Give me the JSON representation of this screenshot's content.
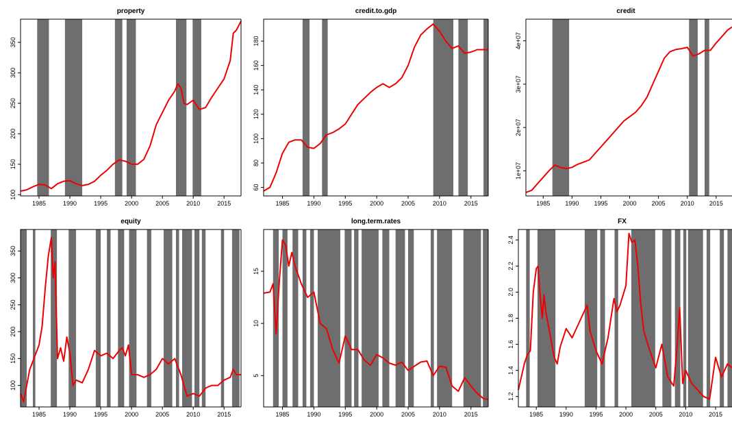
{
  "chart_data": [
    {
      "type": "line",
      "title": "property",
      "xlim": [
        1982,
        2017.75
      ],
      "ylim": [
        98,
        388
      ],
      "xticks": [
        1985,
        1990,
        1995,
        2000,
        2005,
        2010,
        2015
      ],
      "yticks": [
        100,
        150,
        200,
        250,
        300,
        350
      ],
      "line_color": "#ee0000",
      "shade_color": "#6e6e6e",
      "shaded_periods": [
        [
          1984.7,
          1986.6
        ],
        [
          1989.2,
          1992.0
        ],
        [
          1997.3,
          1998.5
        ],
        [
          1999.2,
          2000.7
        ],
        [
          2007.2,
          2008.9
        ],
        [
          2009.9,
          2011.3
        ]
      ],
      "series": [
        {
          "x": [
            1982,
            1983,
            1984,
            1985,
            1986,
            1987,
            1988,
            1989,
            1990,
            1991,
            1992,
            1993,
            1994,
            1995,
            1996,
            1997,
            1998,
            1999,
            2000,
            2001,
            2002,
            2003,
            2004,
            2005,
            2006,
            2007,
            2007.5,
            2008,
            2008.5,
            2009,
            2010,
            2011,
            2012,
            2013,
            2014,
            2015,
            2016,
            2016.5,
            2017,
            2017.75
          ],
          "y": [
            106,
            108,
            113,
            117,
            116,
            110,
            118,
            122,
            123,
            118,
            115,
            117,
            122,
            132,
            140,
            150,
            157,
            155,
            150,
            150,
            158,
            180,
            215,
            235,
            255,
            270,
            282,
            275,
            250,
            248,
            255,
            240,
            243,
            260,
            275,
            290,
            320,
            365,
            370,
            385
          ]
        }
      ]
    },
    {
      "type": "line",
      "title": "credit.to.gdp",
      "xlim": [
        1982,
        2017.75
      ],
      "ylim": [
        53,
        198
      ],
      "xticks": [
        1985,
        1990,
        1995,
        2000,
        2005,
        2010,
        2015
      ],
      "yticks": [
        60,
        80,
        100,
        120,
        140,
        160,
        180
      ],
      "line_color": "#ee0000",
      "shade_color": "#6e6e6e",
      "shaded_periods": [
        [
          1988.2,
          1989.3
        ],
        [
          1991.3,
          1992.2
        ],
        [
          2009.0,
          2012.2
        ],
        [
          2013.0,
          2014.5
        ],
        [
          2017.0,
          2017.75
        ]
      ],
      "series": [
        {
          "x": [
            1982,
            1983,
            1984,
            1985,
            1986,
            1987,
            1988,
            1989,
            1990,
            1991,
            1992,
            1993,
            1994,
            1995,
            1996,
            1997,
            1998,
            1999,
            2000,
            2001,
            2002,
            2003,
            2004,
            2005,
            2006,
            2007,
            2008,
            2009,
            2010,
            2011,
            2012,
            2013,
            2014,
            2015,
            2016,
            2017,
            2017.75
          ],
          "y": [
            57,
            60,
            72,
            88,
            97,
            99,
            99,
            93,
            92,
            96,
            103,
            105,
            108,
            112,
            120,
            128,
            133,
            138,
            142,
            145,
            142,
            145,
            150,
            160,
            175,
            185,
            190,
            194,
            188,
            180,
            174,
            176,
            170,
            171,
            173,
            173,
            173
          ]
        }
      ]
    },
    {
      "type": "line",
      "title": "credit",
      "xlim": [
        1982,
        2017.75
      ],
      "ylim": [
        4200000,
        45000000
      ],
      "xticks": [
        1985,
        1990,
        1995,
        2000,
        2005,
        2010,
        2015
      ],
      "yticks": [
        10000000,
        20000000,
        30000000,
        40000000
      ],
      "ytick_labels": [
        "1e+07",
        "2e+07",
        "3e+07",
        "4e+07"
      ],
      "line_color": "#ee0000",
      "shade_color": "#6e6e6e",
      "shaded_periods": [
        [
          1986.6,
          1989.5
        ],
        [
          2010.3,
          2011.8
        ],
        [
          2013.0,
          2013.8
        ]
      ],
      "series": [
        {
          "x": [
            1982,
            1983,
            1984,
            1985,
            1986,
            1987,
            1988,
            1989,
            1990,
            1991,
            1992,
            1993,
            1994,
            1995,
            1996,
            1997,
            1998,
            1999,
            2000,
            2001,
            2002,
            2003,
            2004,
            2005,
            2006,
            2007,
            2008,
            2009,
            2010,
            2011,
            2012,
            2013,
            2014,
            2015,
            2016,
            2017,
            2017.75
          ],
          "y": [
            5000000,
            5500000,
            7000000,
            8500000,
            10000000,
            11300000,
            10800000,
            10500000,
            10800000,
            11500000,
            12000000,
            12500000,
            14000000,
            15500000,
            17000000,
            18500000,
            20000000,
            21500000,
            22500000,
            23500000,
            25000000,
            27000000,
            30000000,
            33000000,
            36000000,
            37500000,
            38000000,
            38200000,
            38500000,
            36500000,
            37000000,
            37800000,
            37800000,
            39500000,
            41000000,
            42500000,
            43200000
          ]
        }
      ]
    },
    {
      "type": "line",
      "title": "equity",
      "xlim": [
        1982,
        2017.75
      ],
      "ylim": [
        60,
        390
      ],
      "xticks": [
        1985,
        1990,
        1995,
        2000,
        2005,
        2010,
        2015
      ],
      "yticks": [
        100,
        150,
        200,
        250,
        300,
        350
      ],
      "line_color": "#ee0000",
      "shade_color": "#6e6e6e",
      "shaded_periods": [
        [
          1982.0,
          1983.0
        ],
        [
          1984.0,
          1984.4
        ],
        [
          1986.9,
          1987.9
        ],
        [
          1989.8,
          1991.0
        ],
        [
          1994.2,
          1995.0
        ],
        [
          1996.0,
          1996.6
        ],
        [
          1997.8,
          1998.8
        ],
        [
          1999.6,
          2000.8
        ],
        [
          2002.5,
          2003.2
        ],
        [
          2005.2,
          2006.6
        ],
        [
          2007.2,
          2007.7
        ],
        [
          2008.2,
          2009.8
        ],
        [
          2010.2,
          2011.0
        ],
        [
          2011.4,
          2012.0
        ],
        [
          2014.5,
          2015.0
        ],
        [
          2016.3,
          2017.5
        ]
      ],
      "series": [
        {
          "x": [
            1982,
            1982.5,
            1983,
            1983.5,
            1984,
            1984.5,
            1985,
            1985.5,
            1986,
            1986.5,
            1987,
            1987.3,
            1987.6,
            1988,
            1988.5,
            1989,
            1989.5,
            1990,
            1990.5,
            1991,
            1992,
            1993,
            1994,
            1995,
            1996,
            1997,
            1998,
            1998.5,
            1999,
            1999.5,
            2000,
            2001,
            2002,
            2003,
            2004,
            2005,
            2006,
            2007,
            2008,
            2009,
            2010,
            2011,
            2012,
            2013,
            2014,
            2015,
            2016,
            2016.5,
            2017,
            2017.75
          ],
          "y": [
            85,
            70,
            100,
            130,
            145,
            160,
            175,
            210,
            280,
            340,
            375,
            300,
            330,
            150,
            170,
            145,
            190,
            160,
            100,
            110,
            105,
            130,
            165,
            155,
            160,
            150,
            165,
            170,
            155,
            175,
            120,
            120,
            115,
            120,
            130,
            150,
            140,
            150,
            120,
            80,
            85,
            80,
            95,
            100,
            100,
            110,
            115,
            130,
            120,
            120
          ]
        }
      ]
    },
    {
      "type": "line",
      "title": "long.term.rates",
      "xlim": [
        1982,
        2017.75
      ],
      "ylim": [
        2,
        19
      ],
      "xticks": [
        1985,
        1990,
        1995,
        2000,
        2005,
        2010,
        2015
      ],
      "yticks": [
        5,
        10,
        15
      ],
      "line_color": "#ee0000",
      "shade_color": "#6e6e6e",
      "shaded_periods": [
        [
          1983.5,
          1984.4
        ],
        [
          1985.0,
          1985.8
        ],
        [
          1986.6,
          1987.5
        ],
        [
          1988.2,
          1988.8
        ],
        [
          1989.4,
          1990.0
        ],
        [
          1990.6,
          1994.2
        ],
        [
          1994.9,
          1996.0
        ],
        [
          1996.4,
          1997.1
        ],
        [
          1997.6,
          2000.3
        ],
        [
          2000.9,
          2002.0
        ],
        [
          2003.0,
          2004.5
        ],
        [
          2005.0,
          2005.9
        ],
        [
          2008.6,
          2009.1
        ],
        [
          2009.6,
          2012.0
        ],
        [
          2013.8,
          2016.6
        ],
        [
          2016.9,
          2017.7
        ]
      ],
      "series": [
        {
          "x": [
            1982,
            1983,
            1983.5,
            1984,
            1984.5,
            1985,
            1985.5,
            1986,
            1986.5,
            1987,
            1988,
            1989,
            1990,
            1991,
            1992,
            1993,
            1994,
            1995,
            1996,
            1997,
            1998,
            1999,
            2000,
            2001,
            2002,
            2003,
            2004,
            2005,
            2006,
            2007,
            2008,
            2009,
            2010,
            2011,
            2012,
            2013,
            2014,
            2015,
            2016,
            2017,
            2017.75
          ],
          "y": [
            12.9,
            13.0,
            13.8,
            9.0,
            14.0,
            18.0,
            17.5,
            15.5,
            16.8,
            15.5,
            13.8,
            12.5,
            13.0,
            10.0,
            9.5,
            7.5,
            6.2,
            8.8,
            7.5,
            7.5,
            6.5,
            6.0,
            7.0,
            6.7,
            6.2,
            6.0,
            6.3,
            5.5,
            5.9,
            6.3,
            6.4,
            5.0,
            5.9,
            5.8,
            4.0,
            3.5,
            4.8,
            4.0,
            3.3,
            2.8,
            2.7
          ]
        }
      ]
    },
    {
      "type": "line",
      "title": "FX",
      "xlim": [
        1982,
        2017.75
      ],
      "ylim": [
        1.12,
        2.48
      ],
      "xticks": [
        1985,
        1990,
        1995,
        2000,
        2005,
        2010,
        2015
      ],
      "yticks": [
        1.2,
        1.4,
        1.6,
        1.8,
        2.0,
        2.2,
        2.4
      ],
      "ytick_labels": [
        "1.2",
        "1.4",
        "1.6",
        "1.8",
        "2.0",
        "2.2",
        "2.4"
      ],
      "line_color": "#ee0000",
      "shade_color": "#6e6e6e",
      "shaded_periods": [
        [
          1983.3,
          1983.9
        ],
        [
          1985.2,
          1988.2
        ],
        [
          1993.1,
          1995.2
        ],
        [
          1995.7,
          1996.5
        ],
        [
          1998.1,
          1998.7
        ],
        [
          2000.9,
          2004.9
        ],
        [
          2006.1,
          2007.6
        ],
        [
          2008.2,
          2009.1
        ],
        [
          2009.6,
          2010.1
        ],
        [
          2010.4,
          2012.9
        ],
        [
          2013.5,
          2014.1
        ],
        [
          2015.7,
          2016.4
        ],
        [
          2017.0,
          2017.75
        ]
      ],
      "series": [
        {
          "x": [
            1982,
            1983,
            1983.5,
            1984,
            1984.5,
            1985,
            1985.3,
            1985.6,
            1986,
            1986.3,
            1986.6,
            1987,
            1988,
            1988.5,
            1989,
            1990,
            1991,
            1992,
            1993,
            1993.5,
            1994,
            1995,
            1996,
            1997,
            1998,
            1998.5,
            1999,
            2000,
            2000.5,
            2001,
            2001.5,
            2002,
            2002.5,
            2003,
            2004,
            2005,
            2006,
            2007,
            2008,
            2008.5,
            2009,
            2009.5,
            2010,
            2011,
            2012,
            2013,
            2014,
            2015,
            2016,
            2017,
            2017.75
          ],
          "y": [
            1.25,
            1.45,
            1.52,
            1.55,
            2.0,
            2.18,
            2.2,
            2.0,
            1.8,
            1.98,
            1.85,
            1.75,
            1.5,
            1.45,
            1.58,
            1.72,
            1.65,
            1.75,
            1.85,
            1.9,
            1.7,
            1.55,
            1.45,
            1.65,
            1.95,
            1.85,
            1.9,
            2.05,
            2.45,
            2.38,
            2.4,
            2.2,
            1.9,
            1.7,
            1.55,
            1.42,
            1.6,
            1.35,
            1.28,
            1.55,
            1.88,
            1.3,
            1.4,
            1.3,
            1.25,
            1.2,
            1.18,
            1.5,
            1.35,
            1.45,
            1.42
          ]
        }
      ]
    }
  ]
}
